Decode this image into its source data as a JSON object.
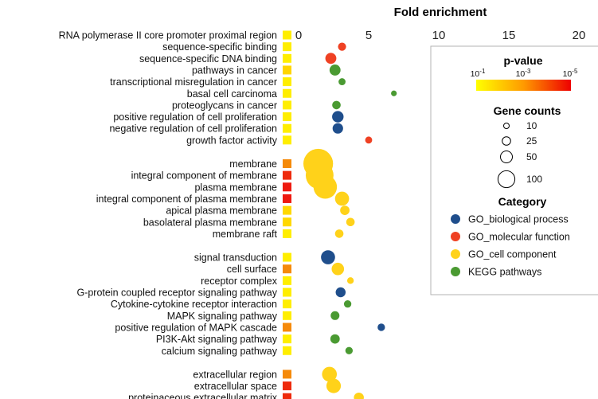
{
  "chart_data": {
    "type": "scatter",
    "title": "Fold enrichment",
    "xlim": [
      0,
      20
    ],
    "x_ticks": [
      "0",
      "5",
      "10",
      "15",
      "20"
    ],
    "grid": false,
    "legend_position": "right",
    "categories": {
      "bio": {
        "name": "GO_biological process",
        "color": "#1f4e8c"
      },
      "mol": {
        "name": "GO_molecular function",
        "color": "#ef4123"
      },
      "cell": {
        "name": "GO_cell component",
        "color": "#ffd21a"
      },
      "kegg": {
        "name": "KEGG pathways",
        "color": "#4a9a32"
      }
    },
    "legend": {
      "pvalue_title": "p-value",
      "pvalue_ticks": [
        {
          "base": "10",
          "exp": "-1"
        },
        {
          "base": "10",
          "exp": "-3"
        },
        {
          "base": "10",
          "exp": "-5"
        }
      ],
      "counts_title": "Gene counts",
      "counts": [
        10,
        25,
        50,
        100
      ],
      "category_title": "Category"
    },
    "groups": [
      [
        {
          "term": "RNA polymerase II core promoter proximal region",
          "fold": null,
          "count": null,
          "category": null,
          "pcolor": "#ffee00"
        },
        {
          "term": "sequence-specific binding",
          "fold": 3.1,
          "count": 12,
          "category": "mol",
          "pcolor": "#ffee00"
        },
        {
          "term": "sequence-specific DNA binding",
          "fold": 2.3,
          "count": 22,
          "category": "mol",
          "pcolor": "#ffee00"
        },
        {
          "term": "pathways in cancer",
          "fold": 2.6,
          "count": 22,
          "category": "kegg",
          "pcolor": "#ffd500"
        },
        {
          "term": "transcriptional misregulation in cancer",
          "fold": 3.1,
          "count": 9,
          "category": "kegg",
          "pcolor": "#ffee00"
        },
        {
          "term": "basal cell carcinoma",
          "fold": 6.8,
          "count": 6,
          "category": "kegg",
          "pcolor": "#ffee00"
        },
        {
          "term": "proteoglycans in cancer",
          "fold": 2.7,
          "count": 13,
          "category": "kegg",
          "pcolor": "#ffee00"
        },
        {
          "term": "positive regulation of cell proliferation",
          "fold": 2.8,
          "count": 24,
          "category": "bio",
          "pcolor": "#ffee00"
        },
        {
          "term": "negative regulation of cell proliferation",
          "fold": 2.8,
          "count": 20,
          "category": "bio",
          "pcolor": "#ffee00"
        },
        {
          "term": "growth factor activity",
          "fold": 5.0,
          "count": 9,
          "category": "mol",
          "pcolor": "#ffee00"
        }
      ],
      [
        {
          "term": "membrane",
          "fold": 1.4,
          "count": 160,
          "category": "cell",
          "pcolor": "#f58a0a"
        },
        {
          "term": "integral component of membrane",
          "fold": 1.5,
          "count": 140,
          "category": "cell",
          "pcolor": "#ee2a0c"
        },
        {
          "term": "plasma membrane",
          "fold": 1.9,
          "count": 100,
          "category": "cell",
          "pcolor": "#ee1a10"
        },
        {
          "term": "integral component of plasma membrane",
          "fold": 3.1,
          "count": 36,
          "category": "cell",
          "pcolor": "#ee1a10"
        },
        {
          "term": "apical plasma membrane",
          "fold": 3.3,
          "count": 16,
          "category": "cell",
          "pcolor": "#ffd800"
        },
        {
          "term": "basolateral plasma membrane",
          "fold": 3.7,
          "count": 13,
          "category": "cell",
          "pcolor": "#ffd800"
        },
        {
          "term": "membrane raft",
          "fold": 2.9,
          "count": 13,
          "category": "cell",
          "pcolor": "#ffee00"
        }
      ],
      [
        {
          "term": "signal transduction",
          "fold": 2.1,
          "count": 36,
          "category": "bio",
          "pcolor": "#ffee00"
        },
        {
          "term": "cell surface",
          "fold": 2.8,
          "count": 28,
          "category": "cell",
          "pcolor": "#f58a0a"
        },
        {
          "term": "receptor complex",
          "fold": 3.7,
          "count": 8,
          "category": "cell",
          "pcolor": "#ffee00"
        },
        {
          "term": "G-protein coupled receptor signaling pathway",
          "fold": 3.0,
          "count": 18,
          "category": "bio",
          "pcolor": "#ffee00"
        },
        {
          "term": "Cytokine-cytokine receptor interaction",
          "fold": 3.5,
          "count": 10,
          "category": "kegg",
          "pcolor": "#ffee00"
        },
        {
          "term": "MAPK signaling pathway",
          "fold": 2.6,
          "count": 14,
          "category": "kegg",
          "pcolor": "#ffee00"
        },
        {
          "term": "positive regulation of MAPK cascade",
          "fold": 5.9,
          "count": 10,
          "category": "bio",
          "pcolor": "#f58a0a"
        },
        {
          "term": "PI3K-Akt signaling pathway",
          "fold": 2.6,
          "count": 16,
          "category": "kegg",
          "pcolor": "#ffee00"
        },
        {
          "term": "calcium signaling pathway",
          "fold": 3.6,
          "count": 10,
          "category": "kegg",
          "pcolor": "#ffee00"
        }
      ],
      [
        {
          "term": "extracellular region",
          "fold": 2.2,
          "count": 40,
          "category": "cell",
          "pcolor": "#f58a0a"
        },
        {
          "term": "extracellular space",
          "fold": 2.5,
          "count": 38,
          "category": "cell",
          "pcolor": "#ee2a0c"
        },
        {
          "term": "proteinaceous extracellular matrix",
          "fold": 4.3,
          "count": 18,
          "category": "cell",
          "pcolor": "#ee2a0c"
        }
      ]
    ]
  }
}
